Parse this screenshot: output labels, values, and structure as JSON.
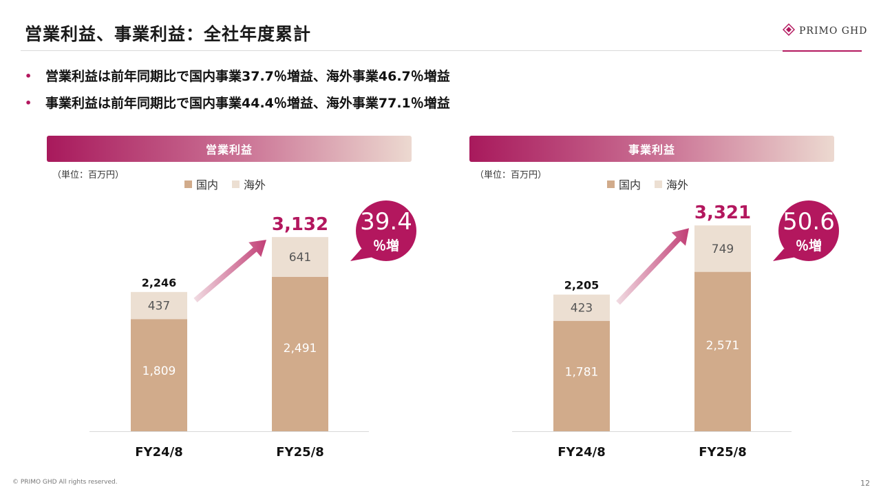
{
  "header": {
    "title": "営業利益、事業利益：全社年度累計",
    "logo_text": "PRIMO GHD"
  },
  "bullets": [
    "営業利益は前年同期比で国内事業37.7％増益、海外事業46.7％増益",
    "事業利益は前年同期比で国内事業44.4％増益、海外事業77.1％増益"
  ],
  "bullet_marker": "•",
  "colors": {
    "accent": "#b3175e",
    "domestic": "#d1ab8b",
    "overseas": "#ecdfd2"
  },
  "chart_data": [
    {
      "type": "bar",
      "stacked": true,
      "title": "営業利益",
      "unit_label": "（単位：百万円）",
      "categories": [
        "FY24/8",
        "FY25/8"
      ],
      "series": [
        {
          "name": "国内",
          "values": [
            1809,
            2491
          ],
          "labels": [
            "1,809",
            "2,491"
          ]
        },
        {
          "name": "海外",
          "values": [
            437,
            641
          ],
          "labels": [
            "437",
            "641"
          ]
        }
      ],
      "totals": [
        2246,
        3132
      ],
      "total_labels": [
        "2,246",
        "3,132"
      ],
      "growth": {
        "value": "39.4",
        "suffix": "％増"
      },
      "legend_position": "top",
      "grid": false
    },
    {
      "type": "bar",
      "stacked": true,
      "title": "事業利益",
      "unit_label": "（単位：百万円）",
      "categories": [
        "FY24/8",
        "FY25/8"
      ],
      "series": [
        {
          "name": "国内",
          "values": [
            1781,
            2571
          ],
          "labels": [
            "1,781",
            "2,571"
          ]
        },
        {
          "name": "海外",
          "values": [
            423,
            749
          ],
          "labels": [
            "423",
            "749"
          ]
        }
      ],
      "totals": [
        2205,
        3321
      ],
      "total_labels": [
        "2,205",
        "3,321"
      ],
      "growth": {
        "value": "50.6",
        "suffix": "％増"
      },
      "legend_position": "top",
      "grid": false
    }
  ],
  "footer": {
    "copyright": "© PRIMO GHD All rights reserved.",
    "page": "12"
  }
}
